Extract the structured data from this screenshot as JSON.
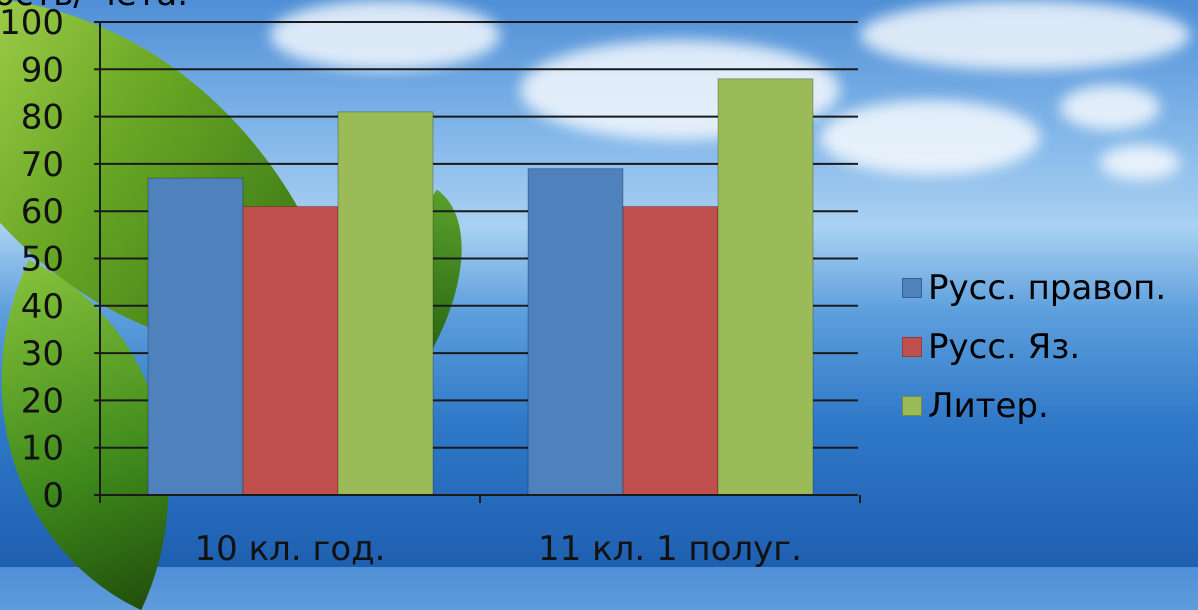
{
  "chart_data": {
    "type": "bar",
    "categories": [
      "10 кл. год.",
      "11 кл. 1 полуг."
    ],
    "series": [
      {
        "name": "Русс. правоп.",
        "values": [
          67,
          69
        ],
        "color": "#4f81bd"
      },
      {
        "name": "Русс. Яз.",
        "values": [
          61,
          61
        ],
        "color": "#c0504d"
      },
      {
        "name": "Литер.",
        "values": [
          81,
          88
        ],
        "color": "#9bbb59"
      }
    ],
    "y_ticks": [
      "0",
      "10",
      "20",
      "30",
      "40",
      "50",
      "60",
      "70",
      "80",
      "90",
      "100"
    ],
    "ylim": [
      0,
      100
    ],
    "grid": true,
    "legend_position": "right",
    "top_text_fragment": "ость/ чета."
  }
}
